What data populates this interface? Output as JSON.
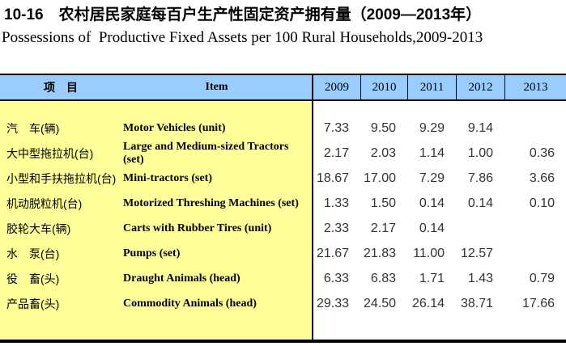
{
  "title": {
    "zh": "10-16　农村居民家庭每百户生产性固定资产拥有量（2009—2013年）",
    "en": "Possessions of  Productive Fixed Assets per 100 Rural Households,2009-2013"
  },
  "table": {
    "header": {
      "item_zh": "项　目",
      "item_en": "Item",
      "years": [
        "2009",
        "2010",
        "2011",
        "2012",
        "2013"
      ]
    },
    "rows": [
      {
        "cn": "汽　车(辆)",
        "en": "Motor Vehicles (unit)",
        "values": [
          "7.33",
          "9.50",
          "9.29",
          "9.14",
          ""
        ]
      },
      {
        "cn": "大中型拖拉机(台)",
        "en": "Large and Medium-sized Tractors (set)",
        "values": [
          "2.17",
          "2.03",
          "1.14",
          "1.00",
          "0.36"
        ]
      },
      {
        "cn": "小型和手扶拖拉机(台)",
        "en": "Mini-tractors (set)",
        "values": [
          "18.67",
          "17.00",
          "7.29",
          "7.86",
          "3.66"
        ]
      },
      {
        "cn": "机动脱粒机(台)",
        "en": "Motorized Threshing Machines (set)",
        "values": [
          "1.33",
          "1.50",
          "0.14",
          "0.14",
          "0.10"
        ]
      },
      {
        "cn": "胶轮大车(辆)",
        "en": "Carts with Rubber Tires (unit)",
        "values": [
          "2.33",
          "2.17",
          "0.14",
          "",
          ""
        ]
      },
      {
        "cn": "水　泵(台)",
        "en": "Pumps (set)",
        "values": [
          "21.67",
          "21.83",
          "11.00",
          "12.57",
          ""
        ]
      },
      {
        "cn": "役　畜(头)",
        "en": "Draught Animals (head)",
        "values": [
          "6.33",
          "6.83",
          "1.71",
          "1.43",
          "0.79"
        ]
      },
      {
        "cn": "产品畜(头)",
        "en": "Commodity Animals (head)",
        "values": [
          "29.33",
          "24.50",
          "26.14",
          "38.71",
          "17.66"
        ]
      }
    ]
  },
  "colors": {
    "header_bg": "#99CCFF",
    "label_bg": "#FFFF99",
    "border": "#000000",
    "number_text": "#333333"
  }
}
